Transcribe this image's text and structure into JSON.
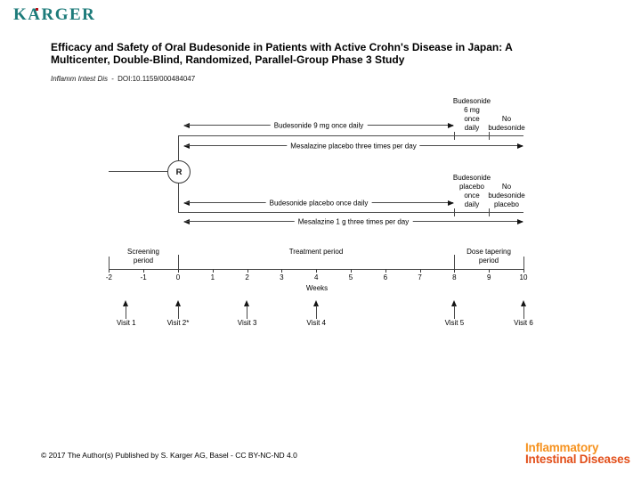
{
  "header": {
    "logo": "KARGER",
    "title_line1": "Efficacy and Safety of Oral Budesonide in Patients with Active Crohn's Disease in Japan: A",
    "title_line2": "Multicenter, Double-Blind, Randomized, Parallel-Group Phase 3 Study",
    "journal_ref": "Inflamm Intest Dis",
    "ref_separator": "-",
    "doi": "DOI:10.1159/000484047"
  },
  "diagram": {
    "randomization_label": "R",
    "arms": [
      {
        "label": "Budesonide 9 mg once daily"
      },
      {
        "label": "Mesalazine placebo three times per day"
      },
      {
        "label": "Budesonide placebo once daily"
      },
      {
        "label": "Mesalazine 1 g three times per day"
      }
    ],
    "taper_labels": {
      "upper_active": "Budesonide\n6 mg\nonce\ndaily",
      "upper_none": "No\nbudesonide",
      "lower_active": "Budesonide\nplacebo\nonce\ndaily",
      "lower_none": "No\nbudesonide\nplacebo"
    },
    "periods": {
      "screening": "Screening\nperiod",
      "treatment": "Treatment period",
      "dose_tapering": "Dose tapering\nperiod"
    },
    "axis": {
      "weeks": [
        -2,
        -1,
        0,
        1,
        2,
        3,
        4,
        5,
        6,
        7,
        8,
        9,
        10
      ],
      "axis_label": "Weeks"
    },
    "visits": [
      {
        "label": "Visit 1",
        "week": -1.5
      },
      {
        "label": "Visit 2*",
        "week": 0
      },
      {
        "label": "Visit 3",
        "week": 2
      },
      {
        "label": "Visit 4",
        "week": 4
      },
      {
        "label": "Visit 5",
        "week": 8
      },
      {
        "label": "Visit 6",
        "week": 10
      }
    ]
  },
  "footer": {
    "copyright": "© 2017 The Author(s) Published by S. Karger AG, Basel - CC BY-NC-ND 4.0",
    "journal_logo_line1": "Inflammatory",
    "journal_logo_line2": "Intestinal Diseases"
  },
  "colors": {
    "karger_teal": "#1d7b7a",
    "karger_dot_red": "#b5121b",
    "journal_logo_orange": "#f6921e",
    "journal_logo_red_orange": "#e24f1a",
    "line_gray": "#4a4a4a"
  }
}
